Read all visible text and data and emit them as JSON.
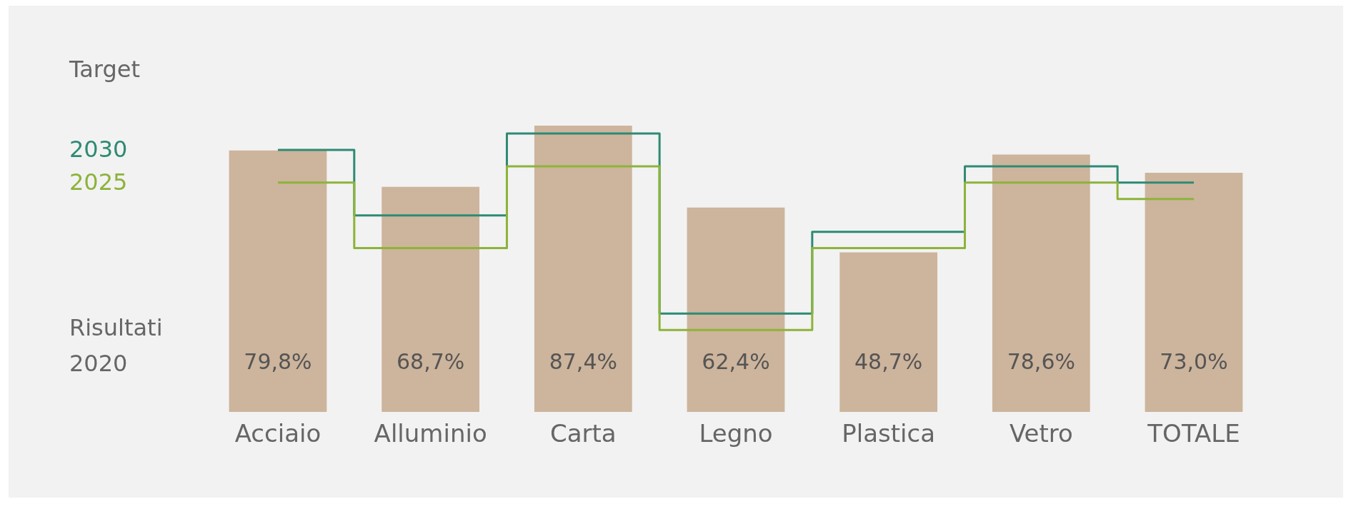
{
  "chart_data": {
    "type": "bar",
    "legend_title": "Target",
    "categories": [
      "Acciaio",
      "Alluminio",
      "Carta",
      "Legno",
      "Plastica",
      "Vetro",
      "TOTALE"
    ],
    "series": [
      {
        "name": "Risultati 2020",
        "color": "#cdb49c",
        "values": [
          79.8,
          68.7,
          87.4,
          62.4,
          48.7,
          78.6,
          73.0
        ],
        "value_labels": [
          "79,8%",
          "68,7%",
          "87,4%",
          "62,4%",
          "48,7%",
          "78,6%",
          "73,0%"
        ]
      },
      {
        "name": "2030",
        "type": "step",
        "color": "#2e8a74",
        "values": [
          80,
          60,
          85,
          30,
          55,
          75,
          70
        ]
      },
      {
        "name": "2025",
        "type": "step",
        "color": "#8db33a",
        "values": [
          70,
          50,
          75,
          25,
          50,
          70,
          65
        ]
      }
    ],
    "tick_labels": "x"
  }
}
